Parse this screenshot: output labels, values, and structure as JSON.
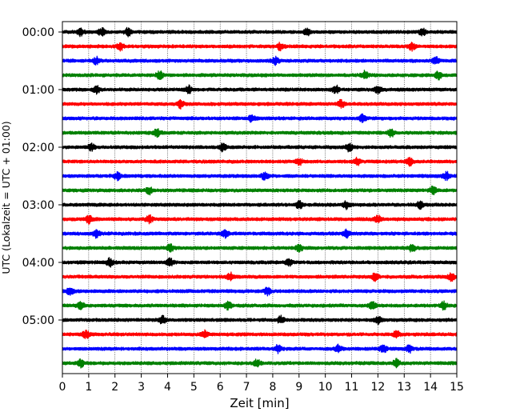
{
  "chart_data": {
    "type": "line",
    "title": "",
    "xlabel": "Zeit  [min]",
    "ylabel": "UTC (Lokalzeit = UTC + 01:00)",
    "xlim": [
      0,
      15
    ],
    "x_ticks": [
      "0",
      "1",
      "2",
      "3",
      "4",
      "5",
      "6",
      "7",
      "8",
      "9",
      "10",
      "11",
      "12",
      "13",
      "14",
      "15"
    ],
    "y_tick_labels": [
      "00:00",
      "01:00",
      "02:00",
      "03:00",
      "04:00",
      "05:00"
    ],
    "grid": "vertical dotted lines at each minute",
    "trace_interval_minutes": 15,
    "trace_color_cycle": [
      "#000000",
      "#ff0000",
      "#0000ff",
      "#008000"
    ],
    "series": [
      {
        "start": "00:00",
        "color": "#000000",
        "events": [
          0.7,
          1.5,
          2.5,
          9.3,
          13.7
        ]
      },
      {
        "start": "00:15",
        "color": "#ff0000",
        "events": [
          2.2,
          8.3,
          13.3
        ]
      },
      {
        "start": "00:30",
        "color": "#0000ff",
        "events": [
          1.3,
          8.1,
          14.2
        ]
      },
      {
        "start": "00:45",
        "color": "#008000",
        "events": [
          3.7,
          11.5,
          14.3
        ]
      },
      {
        "start": "01:00",
        "color": "#000000",
        "events": [
          1.3,
          4.8,
          10.4,
          12.0
        ]
      },
      {
        "start": "01:15",
        "color": "#ff0000",
        "events": [
          4.5,
          10.6
        ]
      },
      {
        "start": "01:30",
        "color": "#0000ff",
        "events": [
          7.2,
          11.4
        ]
      },
      {
        "start": "01:45",
        "color": "#008000",
        "events": [
          3.6,
          12.5
        ]
      },
      {
        "start": "02:00",
        "color": "#000000",
        "events": [
          1.1,
          6.1,
          10.9
        ]
      },
      {
        "start": "02:15",
        "color": "#ff0000",
        "events": [
          9.0,
          11.2,
          13.2
        ]
      },
      {
        "start": "02:30",
        "color": "#0000ff",
        "events": [
          2.1,
          7.7,
          14.6
        ]
      },
      {
        "start": "02:45",
        "color": "#008000",
        "events": [
          3.3,
          14.1
        ]
      },
      {
        "start": "03:00",
        "color": "#000000",
        "events": [
          9.0,
          10.8,
          13.6
        ]
      },
      {
        "start": "03:15",
        "color": "#ff0000",
        "events": [
          1.0,
          3.3,
          12.0
        ]
      },
      {
        "start": "03:30",
        "color": "#0000ff",
        "events": [
          1.3,
          6.2,
          10.8
        ]
      },
      {
        "start": "03:45",
        "color": "#008000",
        "events": [
          4.1,
          9.0,
          13.3
        ]
      },
      {
        "start": "04:00",
        "color": "#000000",
        "events": [
          1.8,
          4.1,
          8.6
        ]
      },
      {
        "start": "04:15",
        "color": "#ff0000",
        "events": [
          6.4,
          11.9,
          14.8
        ]
      },
      {
        "start": "04:30",
        "color": "#0000ff",
        "events": [
          0.3,
          7.8
        ]
      },
      {
        "start": "04:45",
        "color": "#008000",
        "events": [
          0.7,
          6.3,
          11.8,
          14.5
        ]
      },
      {
        "start": "05:00",
        "color": "#000000",
        "events": [
          3.8,
          8.3,
          12.0
        ]
      },
      {
        "start": "05:15",
        "color": "#ff0000",
        "events": [
          0.9,
          5.4,
          12.7
        ]
      },
      {
        "start": "05:30",
        "color": "#0000ff",
        "events": [
          8.2,
          10.5,
          12.2,
          13.2
        ]
      },
      {
        "start": "05:45",
        "color": "#008000",
        "events": [
          0.7,
          7.4,
          12.7
        ]
      }
    ]
  }
}
